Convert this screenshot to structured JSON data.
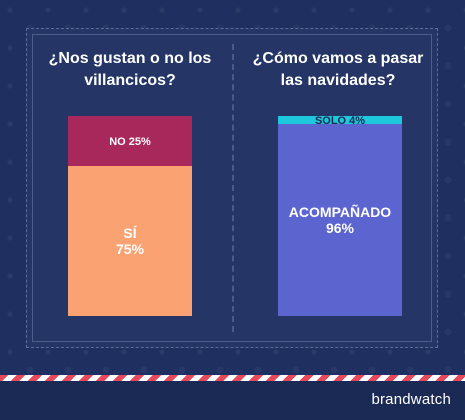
{
  "chart_data": [
    {
      "type": "stacked-bar",
      "title": "¿Nos gustan o no los villancicos?",
      "segments": [
        {
          "label": "NO",
          "value": 25,
          "display": "NO 25%",
          "color": "#a8285c",
          "text_color": "#ffffff"
        },
        {
          "label": "SÍ",
          "value": 75,
          "display_lines": [
            "SÍ",
            "75%"
          ],
          "color": "#fba272",
          "text_color": "#ffffff"
        }
      ]
    },
    {
      "type": "stacked-bar",
      "title": "¿Cómo vamos a pasar las navidades?",
      "segments": [
        {
          "label": "SOLO",
          "value": 4,
          "display": "SOLO 4%",
          "color": "#1ec8dc",
          "text_color": "#1b2a55"
        },
        {
          "label": "ACOMPAÑADO",
          "value": 96,
          "display_lines": [
            "ACOMPAÑADO",
            "96%"
          ],
          "color": "#5b64cf",
          "text_color": "#ffffff"
        }
      ]
    }
  ],
  "footer": {
    "brand": "brandwatch"
  },
  "colors": {
    "background": "#1f2f5f",
    "stripe_red": "#e8495a"
  }
}
